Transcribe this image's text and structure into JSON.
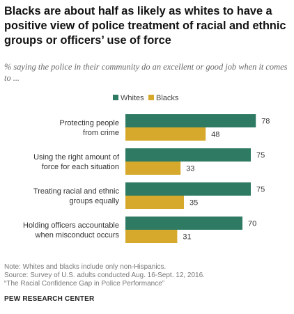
{
  "title": "Blacks are about half as likely as whites to have a positive view of police treatment of racial and ethnic groups or officers’ use of force",
  "subtitle": "% saying the police in their community do an excellent or good job when it comes to ...",
  "chart_data": {
    "type": "bar",
    "orientation": "horizontal",
    "categories": [
      [
        "Protecting people",
        "from crime"
      ],
      [
        "Using the right amount of",
        "force for each situation"
      ],
      [
        "Treating racial and ethnic",
        "groups equally"
      ],
      [
        "Holding officers accountable",
        "when misconduct occurs"
      ]
    ],
    "series": [
      {
        "name": "Whites",
        "color": "#2e7a63",
        "values": [
          78,
          75,
          75,
          70
        ]
      },
      {
        "name": "Blacks",
        "color": "#d6a92c",
        "values": [
          48,
          33,
          35,
          31
        ]
      }
    ],
    "xlim": [
      0,
      100
    ],
    "legend": "top-center",
    "grid": false
  },
  "notes": [
    "Note: Whites and blacks include only non-Hispanics.",
    "Source: Survey of U.S. adults conducted Aug. 16-Sept. 12, 2016.",
    "“The Racial Confidence Gap in Police Performance”"
  ],
  "source_org": "PEW RESEARCH CENTER"
}
